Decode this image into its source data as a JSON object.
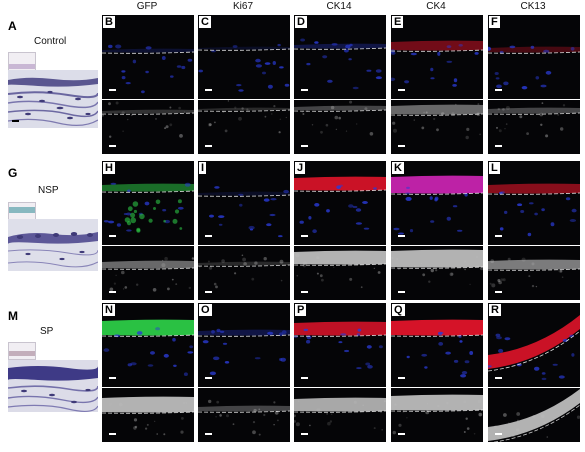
{
  "figure": {
    "columns": [
      "GFP",
      "Ki67",
      "CK14",
      "CK4",
      "CK13"
    ],
    "rows": [
      {
        "group": "Control",
        "histology_letter": "A",
        "panel_letters": [
          "B",
          "C",
          "D",
          "E",
          "F"
        ]
      },
      {
        "group": "NSP",
        "histology_letter": "G",
        "panel_letters": [
          "H",
          "I",
          "J",
          "K",
          "L"
        ]
      },
      {
        "group": "SP",
        "histology_letter": "M",
        "panel_letters": [
          "N",
          "O",
          "P",
          "Q",
          "R"
        ]
      }
    ],
    "colors": {
      "background": "#050507",
      "nuclei_blue": "#2a3bd6",
      "gfp_green": "#2fd64a",
      "marker_red": "#e0142a",
      "merge_magenta": "#d126b8",
      "histology_purple": "#4a4477"
    }
  }
}
